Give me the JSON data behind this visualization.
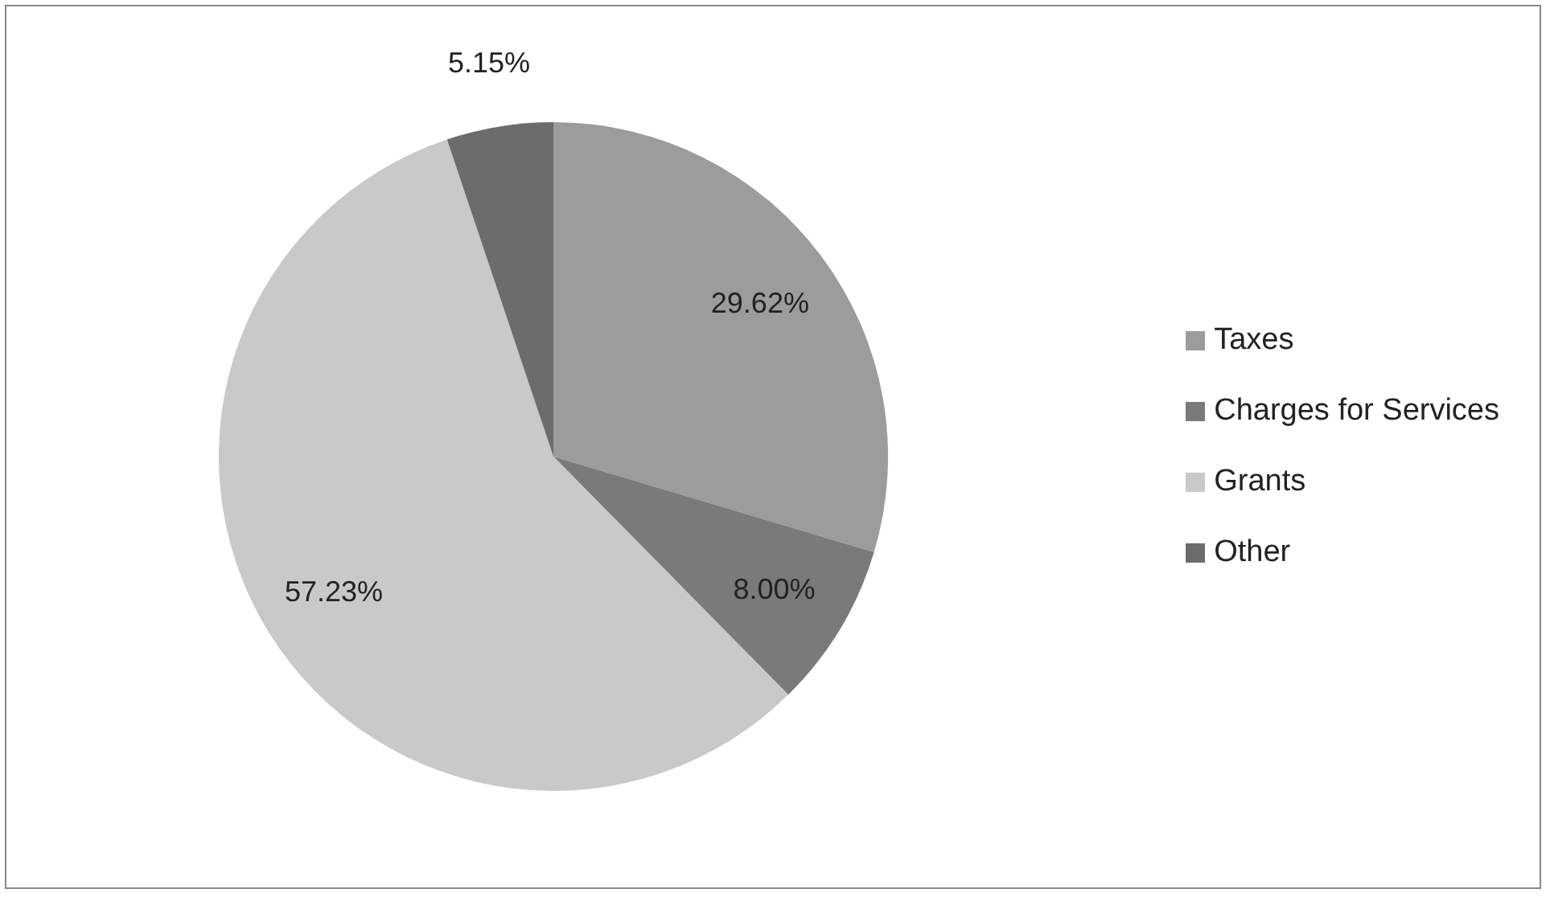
{
  "chart_data": {
    "type": "pie",
    "categories": [
      "Taxes",
      "Charges for Services",
      "Grants",
      "Other"
    ],
    "values": [
      29.62,
      8.0,
      57.23,
      5.15
    ],
    "colors": [
      "#9c9c9c",
      "#7a7a7a",
      "#c9c9c9",
      "#6c6c6c"
    ],
    "value_labels": [
      "29.62%",
      "8.00%",
      "57.23%",
      "5.15%"
    ],
    "legend": "right"
  }
}
